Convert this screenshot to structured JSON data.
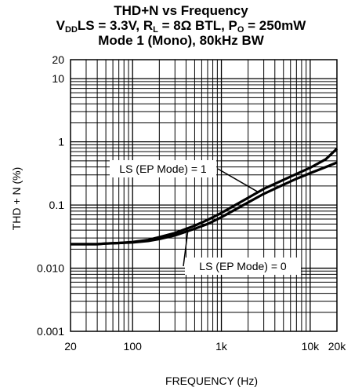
{
  "chart_data": {
    "type": "line",
    "title_line1": "THD+N vs Frequency",
    "title_line2": {
      "p1": "V",
      "s1": "DD",
      "p2": "LS = 3.3V, R",
      "s2": "L",
      "p3": " = 8Ω BTL, P",
      "s3": "O",
      "p4": " = 250mW"
    },
    "title_line3": "Mode 1 (Mono), 80kHz BW",
    "xlabel": "FREQUENCY (Hz)",
    "ylabel": "THD + N (%)",
    "x_scale": "log",
    "y_scale": "log",
    "xlim": [
      20,
      20000
    ],
    "ylim": [
      0.001,
      20
    ],
    "x_ticks": [
      {
        "value": 20,
        "label": "20"
      },
      {
        "value": 100,
        "label": "100"
      },
      {
        "value": 1000,
        "label": "1k"
      },
      {
        "value": 10000,
        "label": "10k"
      },
      {
        "value": 20000,
        "label": "20k"
      }
    ],
    "y_ticks": [
      {
        "value": 0.001,
        "label": "0.001"
      },
      {
        "value": 0.01,
        "label": "0.010"
      },
      {
        "value": 0.1,
        "label": "0.1"
      },
      {
        "value": 1,
        "label": "1"
      },
      {
        "value": 10,
        "label": "10"
      },
      {
        "value": 20,
        "label": "20"
      }
    ],
    "grid": true,
    "series": [
      {
        "name": "LS (EP Mode) = 1",
        "x": [
          20,
          30,
          40,
          50,
          70,
          100,
          150,
          200,
          300,
          500,
          700,
          1000,
          2000,
          3000,
          5000,
          7000,
          10000,
          15000,
          20000
        ],
        "y": [
          0.024,
          0.024,
          0.024,
          0.0245,
          0.025,
          0.026,
          0.028,
          0.031,
          0.036,
          0.047,
          0.058,
          0.075,
          0.13,
          0.18,
          0.25,
          0.31,
          0.39,
          0.53,
          0.78
        ]
      },
      {
        "name": "LS (EP Mode) = 0",
        "x": [
          20,
          30,
          40,
          50,
          70,
          100,
          150,
          200,
          300,
          500,
          700,
          1000,
          2000,
          3000,
          5000,
          7000,
          10000,
          15000,
          20000
        ],
        "y": [
          0.024,
          0.024,
          0.024,
          0.0245,
          0.025,
          0.0255,
          0.027,
          0.029,
          0.033,
          0.042,
          0.05,
          0.064,
          0.11,
          0.15,
          0.21,
          0.26,
          0.32,
          0.4,
          0.47
        ]
      }
    ],
    "annotations": [
      {
        "text": "LS (EP Mode) = 1",
        "series": 0
      },
      {
        "text": "LS (EP Mode) = 0",
        "series": 1
      }
    ]
  }
}
